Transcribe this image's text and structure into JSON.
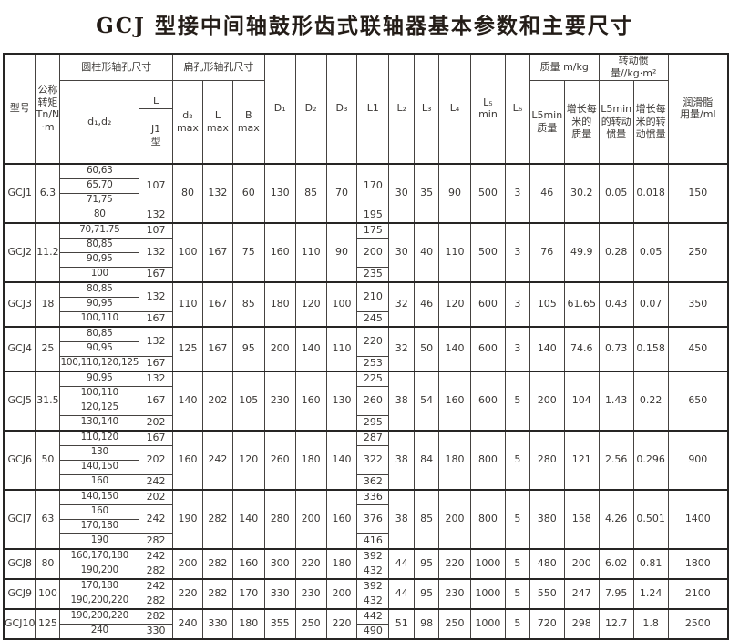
{
  "title": "GCJ 型接中间轴鼓形齿式联轴器基本参数和主要尺寸",
  "header": {
    "model": "型号",
    "torque": "公称\n转矩\nTn/N\n·m",
    "cyl_group": "圆柱形轴孔尺寸",
    "d1d2": "d₁,d₂",
    "l_label": "L",
    "j1_label": "J1\n型",
    "flat_group": "扁孔形轴孔尺寸",
    "d2max": "d₂\nmax",
    "lmax": "L\nmax",
    "bmax": "B\nmax",
    "D1": "D₁",
    "D2": "D₂",
    "D3": "D₃",
    "L1": "L1",
    "L2": "L₂",
    "L3": "L₃",
    "L4": "L₄",
    "L5min": "L₅\nmin",
    "L6": "L₆",
    "mass_group": "质量 m/kg",
    "mass_l5": "L5min\n质量",
    "mass_per_m": "增长每\n米的\n质量",
    "inertia_group": "转动惯量//kg·m²",
    "inertia_l5": "L5min\n的转动\n惯量",
    "inertia_per_m": "增长每\n米的转\n动惯量",
    "grease": "润滑脂\n用量/ml"
  },
  "groups": [
    {
      "model": "GCJ1",
      "torque": "6.3",
      "bores": [
        "60,63",
        "65,70",
        "71,75",
        "80"
      ],
      "L": [
        {
          "t": "107",
          "s": 3
        },
        {
          "t": "132",
          "s": 1
        }
      ],
      "d2max": "80",
      "Lmax": "132",
      "Bmax": "60",
      "D1": "130",
      "D2": "85",
      "D3": "70",
      "L1": [
        {
          "t": "170",
          "s": 3
        },
        {
          "t": "195",
          "s": 1
        }
      ],
      "L2": "30",
      "L3": "35",
      "L4": "90",
      "L5min": "500",
      "L6": "3",
      "mass": "46",
      "massPerM": "30.2",
      "inertia": "0.05",
      "inertiaPerM": "0.018",
      "grease": "150"
    },
    {
      "model": "GCJ2",
      "torque": "11.2",
      "bores": [
        "70,71.75",
        "80,85",
        "90,95",
        "100"
      ],
      "L": [
        {
          "t": "107",
          "s": 1
        },
        {
          "t": "132",
          "s": 2
        },
        {
          "t": "167",
          "s": 1
        }
      ],
      "d2max": "100",
      "Lmax": "167",
      "Bmax": "75",
      "D1": "160",
      "D2": "110",
      "D3": "90",
      "L1": [
        {
          "t": "175",
          "s": 1
        },
        {
          "t": "200",
          "s": 2
        },
        {
          "t": "235",
          "s": 1
        }
      ],
      "L2": "30",
      "L3": "40",
      "L4": "110",
      "L5min": "500",
      "L6": "3",
      "mass": "76",
      "massPerM": "49.9",
      "inertia": "0.28",
      "inertiaPerM": "0.05",
      "grease": "250"
    },
    {
      "model": "GCJ3",
      "torque": "18",
      "bores": [
        "80,85",
        "90,95",
        "100,110"
      ],
      "L": [
        {
          "t": "132",
          "s": 2
        },
        {
          "t": "167",
          "s": 1
        }
      ],
      "d2max": "110",
      "Lmax": "167",
      "Bmax": "85",
      "D1": "180",
      "D2": "120",
      "D3": "100",
      "L1": [
        {
          "t": "210",
          "s": 2
        },
        {
          "t": "245",
          "s": 1
        }
      ],
      "L2": "32",
      "L3": "46",
      "L4": "120",
      "L5min": "600",
      "L6": "3",
      "mass": "105",
      "massPerM": "61.65",
      "inertia": "0.43",
      "inertiaPerM": "0.07",
      "grease": "350"
    },
    {
      "model": "GCJ4",
      "torque": "25",
      "bores": [
        "80,85",
        "90,95",
        "100,110,120,125"
      ],
      "L": [
        {
          "t": "132",
          "s": 2
        },
        {
          "t": "167",
          "s": 1
        }
      ],
      "d2max": "125",
      "Lmax": "167",
      "Bmax": "95",
      "D1": "200",
      "D2": "140",
      "D3": "110",
      "L1": [
        {
          "t": "220",
          "s": 2
        },
        {
          "t": "253",
          "s": 1
        }
      ],
      "L2": "32",
      "L3": "50",
      "L4": "140",
      "L5min": "600",
      "L6": "3",
      "mass": "140",
      "massPerM": "74.6",
      "inertia": "0.73",
      "inertiaPerM": "0.158",
      "grease": "450"
    },
    {
      "model": "GCJ5",
      "torque": "31.5",
      "bores": [
        "90,95",
        "100,110",
        "120,125",
        "130,140"
      ],
      "L": [
        {
          "t": "132",
          "s": 1
        },
        {
          "t": "167",
          "s": 2
        },
        {
          "t": "202",
          "s": 1
        }
      ],
      "d2max": "140",
      "Lmax": "202",
      "Bmax": "105",
      "D1": "230",
      "D2": "160",
      "D3": "130",
      "L1": [
        {
          "t": "225",
          "s": 1
        },
        {
          "t": "260",
          "s": 2
        },
        {
          "t": "295",
          "s": 1
        }
      ],
      "L2": "38",
      "L3": "54",
      "L4": "160",
      "L5min": "600",
      "L6": "5",
      "mass": "200",
      "massPerM": "104",
      "inertia": "1.43",
      "inertiaPerM": "0.22",
      "grease": "650"
    },
    {
      "model": "GCJ6",
      "torque": "50",
      "bores": [
        "110,120",
        "130",
        "140,150",
        "160"
      ],
      "L": [
        {
          "t": "167",
          "s": 1
        },
        {
          "t": "202",
          "s": 2
        },
        {
          "t": "242",
          "s": 1
        }
      ],
      "d2max": "160",
      "Lmax": "242",
      "Bmax": "120",
      "D1": "260",
      "D2": "180",
      "D3": "140",
      "L1": [
        {
          "t": "287",
          "s": 1
        },
        {
          "t": "322",
          "s": 2
        },
        {
          "t": "362",
          "s": 1
        }
      ],
      "L2": "38",
      "L3": "84",
      "L4": "180",
      "L5min": "800",
      "L6": "5",
      "mass": "280",
      "massPerM": "121",
      "inertia": "2.56",
      "inertiaPerM": "0.296",
      "grease": "900"
    },
    {
      "model": "GCJ7",
      "torque": "63",
      "bores": [
        "140,150",
        "160",
        "170,180",
        "190"
      ],
      "L": [
        {
          "t": "202",
          "s": 1
        },
        {
          "t": "242",
          "s": 2
        },
        {
          "t": "282",
          "s": 1
        }
      ],
      "d2max": "190",
      "Lmax": "282",
      "Bmax": "140",
      "D1": "280",
      "D2": "200",
      "D3": "160",
      "L1": [
        {
          "t": "336",
          "s": 1
        },
        {
          "t": "376",
          "s": 2
        },
        {
          "t": "416",
          "s": 1
        }
      ],
      "L2": "38",
      "L3": "85",
      "L4": "200",
      "L5min": "800",
      "L6": "5",
      "mass": "380",
      "massPerM": "158",
      "inertia": "4.26",
      "inertiaPerM": "0.501",
      "grease": "1400"
    },
    {
      "model": "GCJ8",
      "torque": "80",
      "bores": [
        "160,170,180",
        "190,200"
      ],
      "L": [
        {
          "t": "242",
          "s": 1
        },
        {
          "t": "282",
          "s": 1
        }
      ],
      "d2max": "200",
      "Lmax": "282",
      "Bmax": "160",
      "D1": "300",
      "D2": "220",
      "D3": "180",
      "L1": [
        {
          "t": "392",
          "s": 1
        },
        {
          "t": "432",
          "s": 1
        }
      ],
      "L2": "44",
      "L3": "95",
      "L4": "220",
      "L5min": "1000",
      "L6": "5",
      "mass": "480",
      "massPerM": "200",
      "inertia": "6.02",
      "inertiaPerM": "0.81",
      "grease": "1800"
    },
    {
      "model": "GCJ9",
      "torque": "100",
      "bores": [
        "170,180",
        "190,200,220"
      ],
      "L": [
        {
          "t": "242",
          "s": 1
        },
        {
          "t": "282",
          "s": 1
        }
      ],
      "d2max": "220",
      "Lmax": "282",
      "Bmax": "170",
      "D1": "330",
      "D2": "230",
      "D3": "200",
      "L1": [
        {
          "t": "392",
          "s": 1
        },
        {
          "t": "432",
          "s": 1
        }
      ],
      "L2": "44",
      "L3": "95",
      "L4": "230",
      "L5min": "1000",
      "L6": "5",
      "mass": "550",
      "massPerM": "247",
      "inertia": "7.95",
      "inertiaPerM": "1.24",
      "grease": "2100"
    },
    {
      "model": "GCJ10",
      "torque": "125",
      "bores": [
        "190,200,220",
        "240"
      ],
      "L": [
        {
          "t": "282",
          "s": 1
        },
        {
          "t": "330",
          "s": 1
        }
      ],
      "d2max": "240",
      "Lmax": "330",
      "Bmax": "180",
      "D1": "355",
      "D2": "250",
      "D3": "220",
      "L1": [
        {
          "t": "442",
          "s": 1
        },
        {
          "t": "490",
          "s": 1
        }
      ],
      "L2": "51",
      "L3": "98",
      "L4": "250",
      "L5min": "1000",
      "L6": "5",
      "mass": "720",
      "massPerM": "298",
      "inertia": "12.7",
      "inertiaPerM": "1.8",
      "grease": "2500"
    }
  ],
  "colors": {
    "border_thin": "#454240",
    "border_thick": "#262524",
    "text": "#3b3835",
    "background": "#ffffff"
  }
}
